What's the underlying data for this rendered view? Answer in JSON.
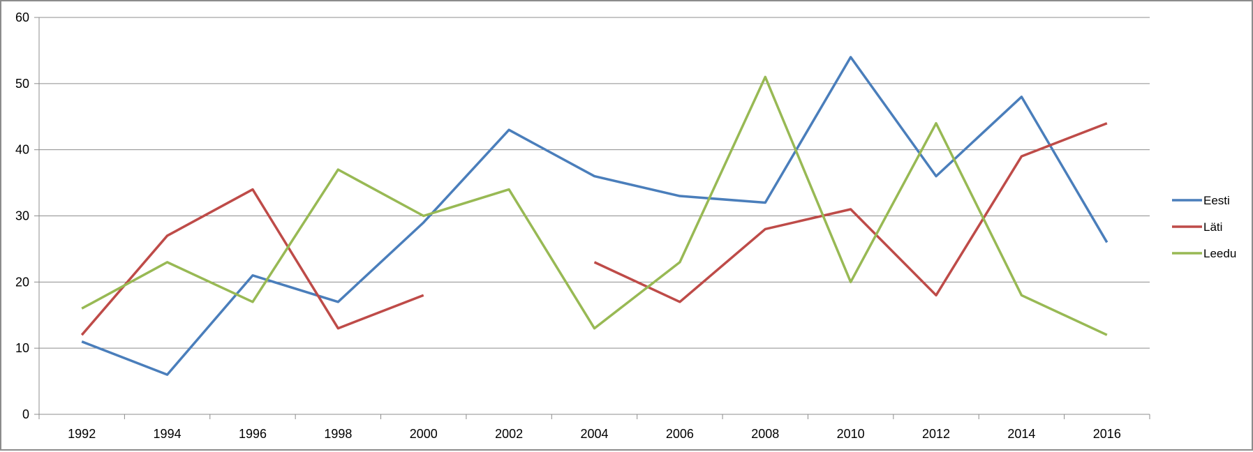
{
  "chart_data": {
    "type": "line",
    "title": "",
    "xlabel": "",
    "ylabel": "",
    "categories": [
      "1992",
      "1994",
      "1996",
      "1998",
      "2000",
      "2002",
      "2004",
      "2006",
      "2008",
      "2010",
      "2012",
      "2014",
      "2016"
    ],
    "ylim": [
      0,
      60
    ],
    "yticks": [
      0,
      10,
      20,
      30,
      40,
      50,
      60
    ],
    "grid": true,
    "legend": "right",
    "series": [
      {
        "name": "Eesti",
        "color": "#4a7ebb",
        "values": [
          11,
          6,
          21,
          17,
          29,
          43,
          36,
          33,
          32,
          54,
          36,
          48,
          26
        ]
      },
      {
        "name": "Läti",
        "color": "#be4b48",
        "values": [
          12,
          27,
          34,
          13,
          18,
          null,
          23,
          17,
          28,
          31,
          18,
          39,
          44
        ]
      },
      {
        "name": "Leedu",
        "color": "#98b954",
        "values": [
          16,
          23,
          17,
          37,
          30,
          34,
          13,
          23,
          51,
          20,
          44,
          18,
          12
        ]
      }
    ]
  }
}
